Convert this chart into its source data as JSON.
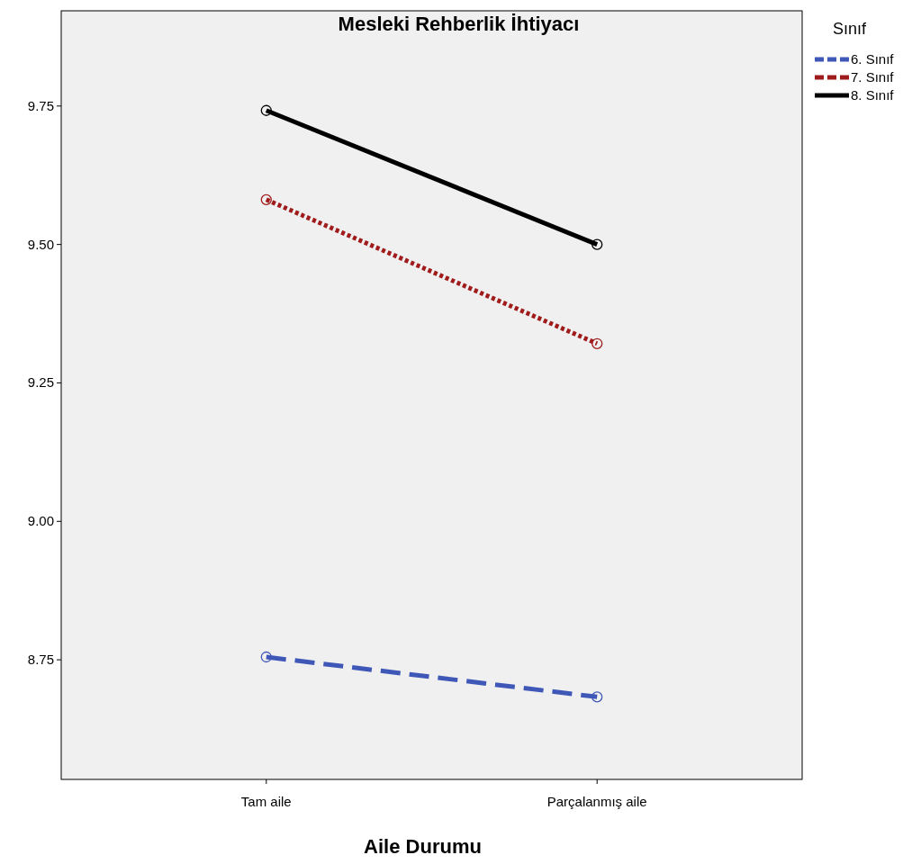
{
  "chart_data": {
    "type": "line",
    "title": "Mesleki Rehberlik İhtiyacı",
    "xlabel": "Aile Durumu",
    "legend_title": "Sınıf",
    "categories": [
      "Tam aile",
      "Parçalanmış aile"
    ],
    "series": [
      {
        "name": "6. Sınıf",
        "color": "#3f58b8",
        "values": [
          8.755,
          8.683
        ],
        "line_style": "dashed"
      },
      {
        "name": "7. Sınıf",
        "color": "#a01c1c",
        "values": [
          9.581,
          9.321
        ],
        "line_style": "dotted"
      },
      {
        "name": "8. Sınıf",
        "color": "#000000",
        "values": [
          9.742,
          9.5
        ],
        "line_style": "solid"
      }
    ],
    "ylim": [
      8.534,
      9.922
    ],
    "yticks": [
      {
        "value": 8.75,
        "label": "8.75"
      },
      {
        "value": 9,
        "label": "9.00"
      },
      {
        "value": 9.25,
        "label": "9.25"
      },
      {
        "value": 9.5,
        "label": "9.50"
      },
      {
        "value": 9.75,
        "label": "9.75"
      }
    ],
    "marker": "circle",
    "legend": "top right",
    "grid": false
  }
}
